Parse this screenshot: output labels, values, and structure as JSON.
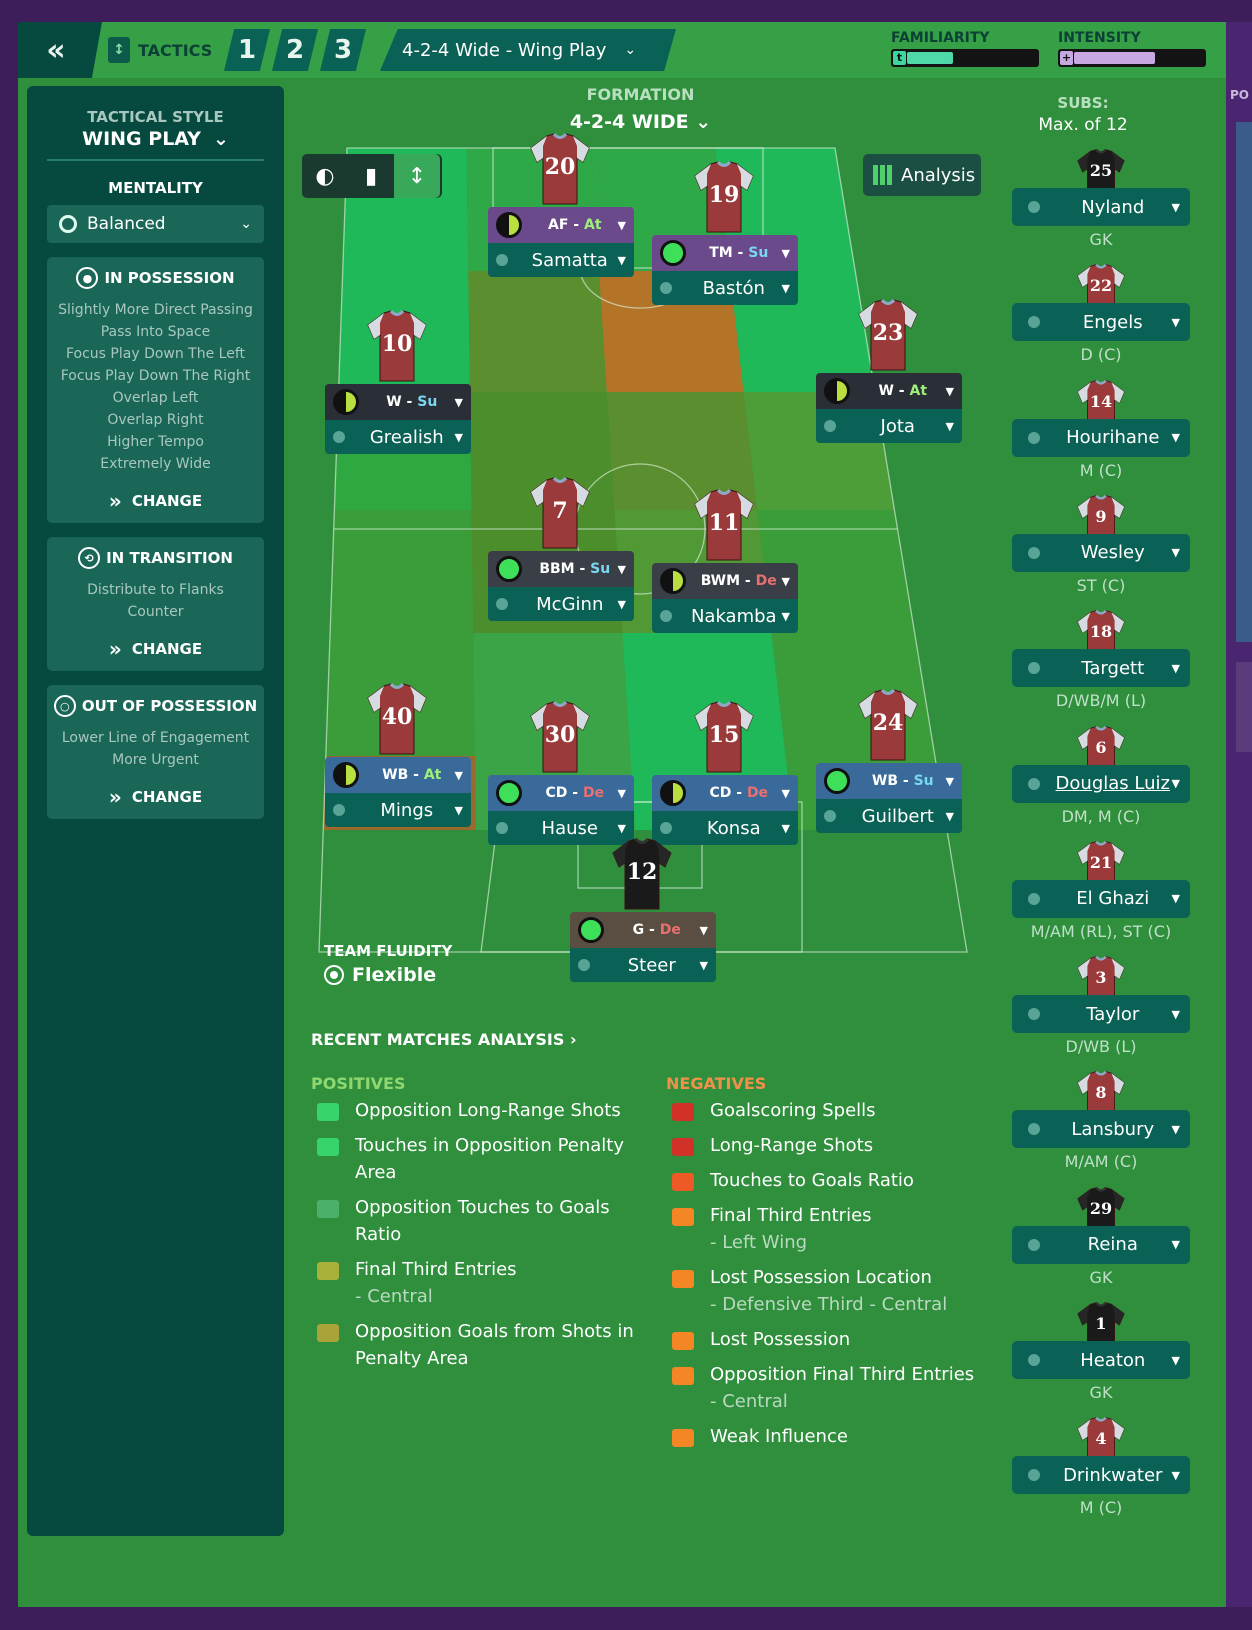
{
  "topbar": {
    "back_icon": "double-chevron-left-icon",
    "tactics_label": "TACTICS",
    "slots": [
      "1",
      "2",
      "3"
    ],
    "tactic_name": "4-2-4 Wide - Wing Play",
    "familiarity_label": "FAMILIARITY",
    "familiarity_level": 0.35,
    "intensity_label": "INTENSITY",
    "intensity_level": 0.62
  },
  "left": {
    "style_title": "TACTICAL STYLE",
    "style_value": "WING PLAY",
    "mentality_title": "MENTALITY",
    "mentality_value": "Balanced",
    "in_possession": {
      "title": "IN POSSESSION",
      "items": [
        "Slightly More Direct Passing",
        "Pass Into Space",
        "Focus Play Down The Left",
        "Focus Play Down The Right",
        "Overlap Left",
        "Overlap Right",
        "Higher Tempo",
        "Extremely Wide"
      ],
      "change": "CHANGE"
    },
    "in_transition": {
      "title": "IN TRANSITION",
      "items": [
        "Distribute to Flanks",
        "Counter"
      ],
      "change": "CHANGE"
    },
    "out_of_possession": {
      "title": "OUT OF POSSESSION",
      "items": [
        "Lower Line of Engagement",
        "More Urgent"
      ],
      "change": "CHANGE"
    }
  },
  "formation": {
    "title": "FORMATION",
    "value": "4-2-4 WIDE"
  },
  "analysis_label": "Analysis",
  "players": [
    {
      "num": "20",
      "role": "AF",
      "duty": "At",
      "name": "Samatta",
      "bar": "#6a4a8a",
      "ind": "half"
    },
    {
      "num": "19",
      "role": "TM",
      "duty": "Su",
      "name": "Bastón",
      "bar": "#6a4a8a",
      "ind": "full"
    },
    {
      "num": "10",
      "role": "W",
      "duty": "Su",
      "name": "Grealish",
      "bar": "#2a2e36",
      "ind": "half"
    },
    {
      "num": "23",
      "role": "W",
      "duty": "At",
      "name": "Jota",
      "bar": "#2a2e36",
      "ind": "half"
    },
    {
      "num": "7",
      "role": "BBM",
      "duty": "Su",
      "name": "McGinn",
      "bar": "#3a3f47",
      "ind": "full"
    },
    {
      "num": "11",
      "role": "BWM",
      "duty": "De",
      "name": "Nakamba",
      "bar": "#3a3f47",
      "ind": "half"
    },
    {
      "num": "40",
      "role": "WB",
      "duty": "At",
      "name": "Mings",
      "bar": "#3a6a9a",
      "ind": "half"
    },
    {
      "num": "30",
      "role": "CD",
      "duty": "De",
      "name": "Hause",
      "bar": "#3a6a9a",
      "ind": "full"
    },
    {
      "num": "15",
      "role": "CD",
      "duty": "De",
      "name": "Konsa",
      "bar": "#3a6a9a",
      "ind": "half"
    },
    {
      "num": "24",
      "role": "WB",
      "duty": "Su",
      "name": "Guilbert",
      "bar": "#3a6a9a",
      "ind": "full"
    },
    {
      "num": "12",
      "role": "G",
      "duty": "De",
      "name": "Steer",
      "bar": "#5a4e42",
      "ind": "full"
    }
  ],
  "team_fluidity": {
    "title": "TEAM FLUIDITY",
    "value": "Flexible"
  },
  "recent": {
    "title": "RECENT MATCHES ANALYSIS",
    "positives_title": "POSITIVES",
    "positives": [
      {
        "text": "Opposition Long-Range Shots",
        "sub": "",
        "color": "#36d46a"
      },
      {
        "text": "Touches in Opposition Penalty Area",
        "sub": "",
        "color": "#36d46a"
      },
      {
        "text": "Opposition Touches to Goals Ratio",
        "sub": "",
        "color": "#4bb069"
      },
      {
        "text": "Final Third Entries",
        "sub": "- Central",
        "color": "#a9b03a"
      },
      {
        "text": "Opposition Goals from Shots in Penalty Area",
        "sub": "",
        "color": "#a9a33a"
      }
    ],
    "negatives_title": "NEGATIVES",
    "negatives": [
      {
        "text": "Goalscoring Spells",
        "sub": "",
        "color": "#d2312a"
      },
      {
        "text": "Long-Range Shots",
        "sub": "",
        "color": "#d2312a"
      },
      {
        "text": "Touches to Goals Ratio",
        "sub": "",
        "color": "#ee5a25"
      },
      {
        "text": "Final Third Entries",
        "sub": "- Left Wing",
        "color": "#f58625"
      },
      {
        "text": "Lost Possession Location",
        "sub": "- Defensive Third - Central",
        "color": "#f58625"
      },
      {
        "text": "Lost Possession",
        "sub": "",
        "color": "#f58625"
      },
      {
        "text": "Opposition Final Third Entries",
        "sub": "- Central",
        "color": "#f58625"
      },
      {
        "text": "Weak Influence",
        "sub": "",
        "color": "#f58625"
      }
    ]
  },
  "subs": {
    "title": "SUBS:",
    "max": "Max. of 12",
    "list": [
      {
        "num": "25",
        "name": "Nyland",
        "pos": "GK",
        "kit": "gk"
      },
      {
        "num": "22",
        "name": "Engels",
        "pos": "D (C)",
        "kit": "out"
      },
      {
        "num": "14",
        "name": "Hourihane",
        "pos": "M (C)",
        "kit": "out"
      },
      {
        "num": "9",
        "name": "Wesley",
        "pos": "ST (C)",
        "kit": "out"
      },
      {
        "num": "18",
        "name": "Targett",
        "pos": "D/WB/M (L)",
        "kit": "out"
      },
      {
        "num": "6",
        "name": "Douglas Luiz",
        "pos": "DM, M (C)",
        "kit": "out"
      },
      {
        "num": "21",
        "name": "El Ghazi",
        "pos": "M/AM (RL), ST (C)",
        "kit": "out"
      },
      {
        "num": "3",
        "name": "Taylor",
        "pos": "D/WB (L)",
        "kit": "out"
      },
      {
        "num": "8",
        "name": "Lansbury",
        "pos": "M/AM (C)",
        "kit": "out"
      },
      {
        "num": "29",
        "name": "Reina",
        "pos": "GK",
        "kit": "gk"
      },
      {
        "num": "1",
        "name": "Heaton",
        "pos": "GK",
        "kit": "gk"
      },
      {
        "num": "4",
        "name": "Drinkwater",
        "pos": "M (C)",
        "kit": "out"
      }
    ]
  }
}
